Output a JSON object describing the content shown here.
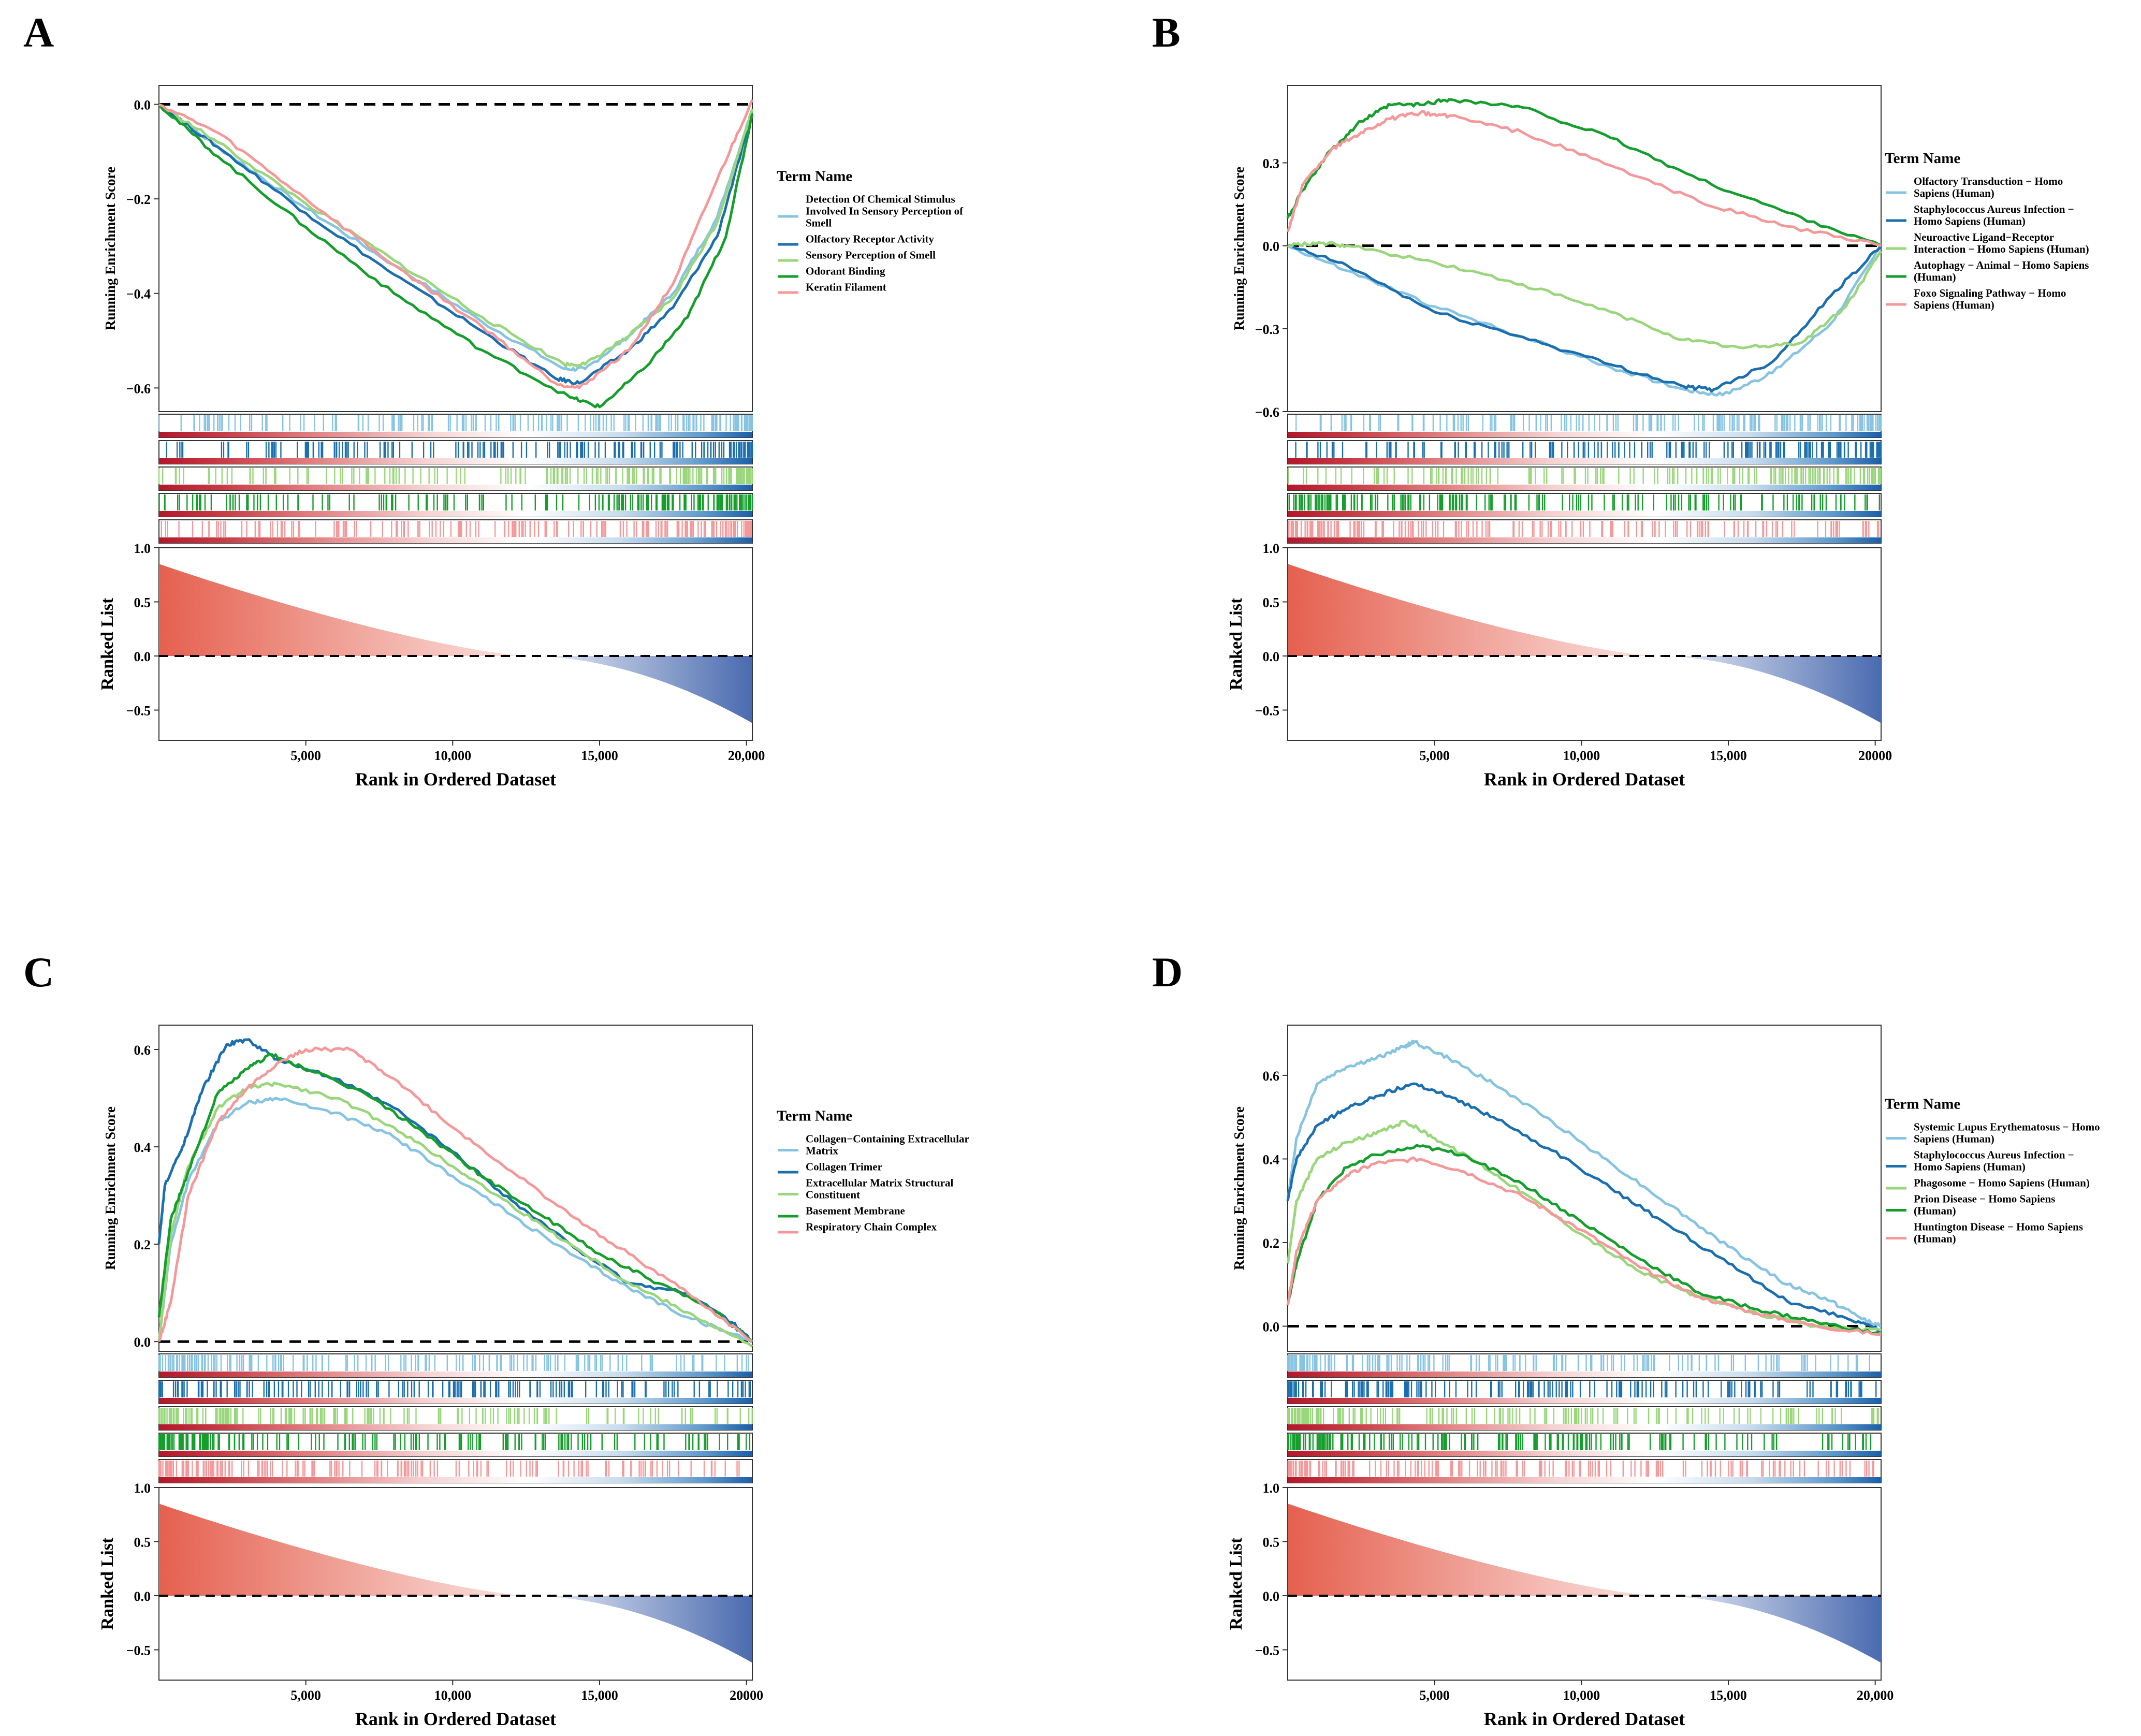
{
  "figure": {
    "title": "GSEA enrichment plots"
  },
  "palette": {
    "light_blue": "#87C4E2",
    "blue": "#1B6FAE",
    "light_green": "#9AD67B",
    "green": "#159E2C",
    "pink": "#F4989A",
    "heat_red": "#B2182B",
    "heat_blue": "#2166AC",
    "ranked_pos": "#E5604F",
    "ranked_neg": "#4A6BB0"
  },
  "shared_labels": {
    "ylabel_top": "Running Enrichment Score",
    "ylabel_bottom": "Ranked List",
    "xlabel": "Rank in Ordered Dataset",
    "legend_title": "Term Name",
    "ranked_ticks": [
      "1.0",
      "0.5",
      "0.0",
      "−0.5"
    ]
  },
  "chart_data": [
    {
      "type": "line",
      "panel": "A",
      "xlabel": "Rank in Ordered Dataset",
      "ylabel": "Running Enrichment Score",
      "xlim": [
        0,
        20200
      ],
      "ylim": [
        -0.65,
        0.04
      ],
      "x_ticks": [
        "5,000",
        "10,000",
        "15,000",
        "20,000"
      ],
      "y_ticks": [
        0.0,
        -0.2,
        -0.4,
        -0.6
      ],
      "y_tick_labels": [
        "0.0",
        "−0.2",
        "−0.4",
        "−0.6"
      ],
      "series": [
        {
          "name": "Detection Of Chemical Stimulus Involved In Sensory Perception of Smell",
          "legend_lines": [
            "Detection Of Chemical Stimulus",
            "Involved In Sensory Perception of",
            "Smell"
          ],
          "color": "#87C4E2",
          "x": [
            0,
            2000,
            5000,
            8000,
            11000,
            13800,
            14500,
            16000,
            17500,
            19000,
            20200
          ],
          "y": [
            0,
            -0.09,
            -0.22,
            -0.34,
            -0.46,
            -0.56,
            -0.56,
            -0.49,
            -0.4,
            -0.24,
            -0.01
          ]
        },
        {
          "name": "Olfactory Receptor Activity",
          "legend_lines": [
            "Olfactory Receptor Activity"
          ],
          "color": "#1B6FAE",
          "x": [
            0,
            2000,
            5000,
            8000,
            11000,
            13500,
            14300,
            16000,
            17500,
            19000,
            20200
          ],
          "y": [
            0,
            -0.09,
            -0.23,
            -0.36,
            -0.48,
            -0.58,
            -0.59,
            -0.52,
            -0.43,
            -0.28,
            -0.02
          ]
        },
        {
          "name": "Sensory Perception of Smell",
          "legend_lines": [
            "Sensory Perception of Smell"
          ],
          "color": "#9AD67B",
          "x": [
            0,
            2000,
            5000,
            8000,
            11000,
            13800,
            14500,
            16000,
            17500,
            19000,
            20200
          ],
          "y": [
            0,
            -0.08,
            -0.21,
            -0.33,
            -0.45,
            -0.55,
            -0.55,
            -0.49,
            -0.41,
            -0.25,
            -0.01
          ]
        },
        {
          "name": "Odorant Binding",
          "legend_lines": [
            "Odorant Binding"
          ],
          "color": "#159E2C",
          "x": [
            0,
            2000,
            5000,
            8000,
            11000,
            14000,
            15000,
            16500,
            18000,
            19300,
            20200
          ],
          "y": [
            0,
            -0.11,
            -0.26,
            -0.4,
            -0.52,
            -0.62,
            -0.64,
            -0.56,
            -0.45,
            -0.28,
            -0.02
          ]
        },
        {
          "name": "Keratin Filament",
          "legend_lines": [
            "Keratin Filament"
          ],
          "color": "#F4989A",
          "x": [
            0,
            2000,
            5000,
            8000,
            11000,
            13500,
            14300,
            16000,
            17500,
            19000,
            20200
          ],
          "y": [
            0,
            -0.06,
            -0.2,
            -0.34,
            -0.47,
            -0.59,
            -0.6,
            -0.52,
            -0.38,
            -0.16,
            0.01
          ]
        }
      ]
    },
    {
      "type": "line",
      "panel": "B",
      "xlabel": "Rank in Ordered Dataset",
      "ylabel": "Running Enrichment Score",
      "xlim": [
        0,
        20200
      ],
      "ylim": [
        -0.6,
        0.58
      ],
      "x_ticks": [
        "5,000",
        "10,000",
        "15,000",
        "20000"
      ],
      "y_ticks": [
        0.3,
        0.0,
        -0.3,
        -0.6
      ],
      "y_tick_labels": [
        "0.3",
        "0.0",
        "−0.3",
        "−0.6"
      ],
      "series": [
        {
          "name": "Olfactory Transduction − Homo Sapiens (Human)",
          "legend_lines": [
            "Olfactory Transduction − Homo",
            "Sapiens (Human)"
          ],
          "color": "#87C4E2",
          "x": [
            0,
            2000,
            5000,
            8000,
            11000,
            13500,
            14800,
            16500,
            18500,
            20200
          ],
          "y": [
            0,
            -0.09,
            -0.22,
            -0.33,
            -0.44,
            -0.52,
            -0.54,
            -0.46,
            -0.28,
            0.0
          ]
        },
        {
          "name": "Staphylococcus Aureus Infection − Homo Sapiens (Human)",
          "legend_lines": [
            "Staphylococcus Aureus Infection −",
            "Homo Sapiens (Human)"
          ],
          "color": "#1B6FAE",
          "x": [
            0,
            2000,
            5000,
            8000,
            11000,
            13500,
            14500,
            16500,
            18500,
            20200
          ],
          "y": [
            0,
            -0.07,
            -0.24,
            -0.33,
            -0.43,
            -0.51,
            -0.52,
            -0.42,
            -0.18,
            0.0
          ]
        },
        {
          "name": "Neuroactive Ligand−Receptor Interaction − Homo Sapiens (Human)",
          "legend_lines": [
            "Neuroactive Ligand−Receptor",
            "Interaction − Homo Sapiens (Human)"
          ],
          "color": "#9AD67B",
          "x": [
            0,
            1000,
            2000,
            5000,
            8000,
            11000,
            13500,
            15500,
            17500,
            19000,
            20200
          ],
          "y": [
            0,
            0.01,
            0.0,
            -0.06,
            -0.14,
            -0.24,
            -0.34,
            -0.37,
            -0.35,
            -0.22,
            -0.02
          ]
        },
        {
          "name": "Autophagy − Animal − Homo Sapiens (Human)",
          "legend_lines": [
            "Autophagy − Animal − Homo Sapiens",
            "(Human)"
          ],
          "color": "#159E2C",
          "x": [
            0,
            500,
            1500,
            2500,
            3500,
            4500,
            5500,
            8000,
            11000,
            14000,
            17000,
            20200
          ],
          "y": [
            0.1,
            0.2,
            0.35,
            0.45,
            0.51,
            0.51,
            0.53,
            0.5,
            0.39,
            0.24,
            0.12,
            0.0
          ]
        },
        {
          "name": "Foxo Signaling Pathway − Homo Sapiens (Human)",
          "legend_lines": [
            "Foxo Signaling Pathway − Homo",
            "Sapiens (Human)"
          ],
          "color": "#F4989A",
          "x": [
            0,
            500,
            1500,
            2500,
            3500,
            4500,
            5500,
            8000,
            11000,
            14000,
            17000,
            20200
          ],
          "y": [
            0.05,
            0.22,
            0.35,
            0.41,
            0.46,
            0.48,
            0.47,
            0.41,
            0.29,
            0.16,
            0.07,
            0.0
          ]
        }
      ]
    },
    {
      "type": "line",
      "panel": "C",
      "xlabel": "Rank in Ordered Dataset",
      "ylabel": "Running Enrichment Score",
      "xlim": [
        0,
        20200
      ],
      "ylim": [
        -0.02,
        0.65
      ],
      "x_ticks": [
        "5,000",
        "10,000",
        "15,000",
        "20000"
      ],
      "y_ticks": [
        0.0,
        0.2,
        0.4,
        0.6
      ],
      "y_tick_labels": [
        "0.0",
        "0.2",
        "0.4",
        "0.6"
      ],
      "series": [
        {
          "name": "Collagen−Containing Extracellular Matrix",
          "legend_lines": [
            "Collagen−Containing Extracellular",
            "Matrix"
          ],
          "color": "#87C4E2",
          "x": [
            0,
            400,
            1000,
            2000,
            3000,
            4000,
            6000,
            8000,
            10000,
            12000,
            14000,
            16000,
            18000,
            20200
          ],
          "y": [
            0,
            0.2,
            0.33,
            0.45,
            0.49,
            0.5,
            0.47,
            0.42,
            0.34,
            0.26,
            0.18,
            0.11,
            0.05,
            0.0
          ]
        },
        {
          "name": "Collagen Trimer",
          "legend_lines": [
            "Collagen Trimer"
          ],
          "color": "#1B6FAE",
          "x": [
            0,
            200,
            800,
            1500,
            2300,
            3000,
            4000,
            6000,
            8000,
            10000,
            12000,
            14000,
            16000,
            18000,
            19500,
            20200
          ],
          "y": [
            0.2,
            0.32,
            0.4,
            0.52,
            0.61,
            0.62,
            0.58,
            0.54,
            0.48,
            0.39,
            0.29,
            0.2,
            0.12,
            0.1,
            0.04,
            0.0
          ]
        },
        {
          "name": "Extracellular Matrix Structural Constituent",
          "legend_lines": [
            "Extracellular Matrix Structural",
            "Constituent"
          ],
          "color": "#9AD67B",
          "x": [
            0,
            400,
            1000,
            2000,
            3000,
            4000,
            6000,
            8000,
            10000,
            12000,
            14000,
            16000,
            18000,
            20200
          ],
          "y": [
            0,
            0.22,
            0.36,
            0.48,
            0.52,
            0.53,
            0.5,
            0.44,
            0.36,
            0.28,
            0.2,
            0.12,
            0.06,
            -0.01
          ]
        },
        {
          "name": "Basement Membrane",
          "legend_lines": [
            "Basement Membrane"
          ],
          "color": "#159E2C",
          "x": [
            0,
            400,
            1000,
            2000,
            3000,
            3800,
            5000,
            7000,
            9000,
            11000,
            13000,
            15000,
            17000,
            19000,
            20200
          ],
          "y": [
            0.05,
            0.25,
            0.35,
            0.51,
            0.56,
            0.59,
            0.56,
            0.51,
            0.43,
            0.34,
            0.26,
            0.18,
            0.12,
            0.06,
            0.0
          ]
        },
        {
          "name": "Respiratory Chain Complex",
          "legend_lines": [
            "Respiratory Chain Complex"
          ],
          "color": "#F4989A",
          "x": [
            0,
            400,
            1000,
            2000,
            3000,
            4000,
            5000,
            6500,
            8000,
            10000,
            12000,
            14000,
            16000,
            18000,
            20200
          ],
          "y": [
            0,
            0.08,
            0.3,
            0.45,
            0.52,
            0.57,
            0.6,
            0.6,
            0.54,
            0.44,
            0.35,
            0.26,
            0.18,
            0.1,
            0.0
          ]
        }
      ]
    },
    {
      "type": "line",
      "panel": "D",
      "xlabel": "Rank in Ordered Dataset",
      "ylabel": "Running Enrichment Score",
      "xlim": [
        0,
        20200
      ],
      "ylim": [
        -0.06,
        0.72
      ],
      "x_ticks": [
        "5,000",
        "10,000",
        "15,000",
        "20,000"
      ],
      "y_ticks": [
        0.0,
        0.2,
        0.4,
        0.6
      ],
      "y_tick_labels": [
        "0.0",
        "0.2",
        "0.4",
        "0.6"
      ],
      "series": [
        {
          "name": "Systemic Lupus Erythematosus − Homo Sapiens (Human)",
          "legend_lines": [
            "Systemic Lupus Erythematosus − Homo",
            "Sapiens (Human)"
          ],
          "color": "#87C4E2",
          "x": [
            0,
            300,
            1000,
            2000,
            3000,
            4000,
            4300,
            5500,
            7000,
            9000,
            11000,
            13000,
            15000,
            17000,
            18500,
            19500,
            20200
          ],
          "y": [
            0.3,
            0.45,
            0.58,
            0.62,
            0.64,
            0.67,
            0.68,
            0.64,
            0.58,
            0.49,
            0.39,
            0.29,
            0.19,
            0.1,
            0.06,
            0.02,
            0.0
          ]
        },
        {
          "name": "Staphylococcus Aureus Infection − Homo Sapiens (Human)",
          "legend_lines": [
            "Staphylococcus Aureus Infection −",
            "Homo Sapiens (Human)"
          ],
          "color": "#1B6FAE",
          "x": [
            0,
            300,
            1000,
            2000,
            3000,
            4300,
            5500,
            7000,
            9000,
            11000,
            13000,
            15000,
            17000,
            19000,
            20200
          ],
          "y": [
            0.3,
            0.4,
            0.48,
            0.52,
            0.55,
            0.58,
            0.55,
            0.5,
            0.42,
            0.33,
            0.24,
            0.15,
            0.06,
            0.02,
            -0.01
          ]
        },
        {
          "name": "Phagosome − Homo Sapiens (Human)",
          "legend_lines": [
            "Phagosome − Homo Sapiens (Human)"
          ],
          "color": "#9AD67B",
          "x": [
            0,
            300,
            1000,
            2000,
            3000,
            4000,
            5000,
            6500,
            8000,
            10000,
            12000,
            14000,
            16000,
            18000,
            20200
          ],
          "y": [
            0.15,
            0.3,
            0.4,
            0.44,
            0.46,
            0.49,
            0.45,
            0.39,
            0.32,
            0.22,
            0.13,
            0.07,
            0.03,
            0.0,
            -0.01
          ]
        },
        {
          "name": "Prion Disease − Homo Sapiens (Human)",
          "legend_lines": [
            "Prion Disease − Homo Sapiens",
            "(Human)"
          ],
          "color": "#159E2C",
          "x": [
            0,
            300,
            1000,
            2000,
            3000,
            4500,
            6000,
            8000,
            10000,
            12000,
            14000,
            16000,
            18000,
            20200
          ],
          "y": [
            0.05,
            0.15,
            0.3,
            0.38,
            0.41,
            0.43,
            0.41,
            0.34,
            0.25,
            0.16,
            0.08,
            0.04,
            0.01,
            -0.02
          ]
        },
        {
          "name": "Huntington Disease − Homo Sapiens (Human)",
          "legend_lines": [
            "Huntington Disease − Homo Sapiens",
            "(Human)"
          ],
          "color": "#F4989A",
          "x": [
            0,
            300,
            1000,
            2000,
            3000,
            4500,
            6000,
            8000,
            10000,
            12000,
            14000,
            16000,
            18000,
            20200
          ],
          "y": [
            0.05,
            0.18,
            0.3,
            0.36,
            0.39,
            0.4,
            0.37,
            0.31,
            0.23,
            0.14,
            0.07,
            0.03,
            0.0,
            -0.02
          ]
        }
      ]
    }
  ]
}
